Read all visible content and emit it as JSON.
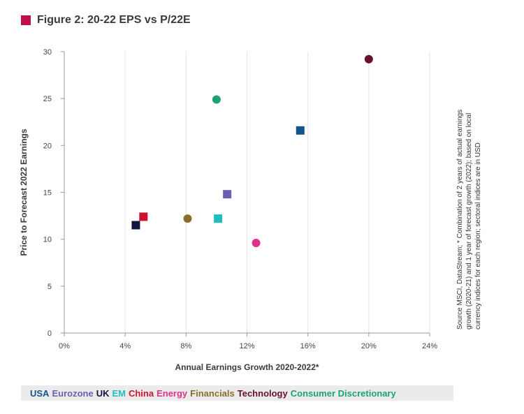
{
  "colors": {
    "title_marker": "#c0104a",
    "axis_text": "#444444",
    "grid": "#e6e6e6",
    "axis_line": "#999999",
    "legend_bg": "#ebebeb"
  },
  "chart_data": {
    "type": "scatter",
    "title": "Figure 2: 20-22 EPS vs P/22E",
    "xlabel": "Annual Earnings Growth 2020-2022*",
    "ylabel": "Price to Forecast 2022 Earnings",
    "xlim": [
      0,
      24
    ],
    "ylim": [
      0,
      30
    ],
    "xticks": [
      0,
      4,
      8,
      12,
      16,
      20,
      24
    ],
    "xtick_labels": [
      "0%",
      "4%",
      "8%",
      "12%",
      "16%",
      "20%",
      "24%"
    ],
    "yticks": [
      0,
      5,
      10,
      15,
      20,
      25,
      30
    ],
    "ytick_labels": [
      "0",
      "5",
      "10",
      "15",
      "20",
      "25",
      "30"
    ],
    "grid": "vertical",
    "legend_position": "bottom",
    "source_note": "Source MSCI, DataStream; * Combination of 2 years of actual earnings growth (2020-21) and 1 year of forecast growth (2022); based on local currency indices for each region; sectoral indices are in USD",
    "series": [
      {
        "name": "USA",
        "x": 15.5,
        "y": 21.6,
        "color": "#12558a",
        "marker": "square"
      },
      {
        "name": "Eurozone",
        "x": 10.7,
        "y": 14.8,
        "color": "#6c5fb0",
        "marker": "square"
      },
      {
        "name": "UK",
        "x": 4.7,
        "y": 11.5,
        "color": "#111540",
        "marker": "square"
      },
      {
        "name": "EM",
        "x": 10.1,
        "y": 12.2,
        "color": "#22bcc4",
        "marker": "square"
      },
      {
        "name": "China",
        "x": 5.2,
        "y": 12.4,
        "color": "#c8152d",
        "marker": "square"
      },
      {
        "name": "Energy",
        "x": 12.6,
        "y": 9.6,
        "color": "#e0308a",
        "marker": "circle"
      },
      {
        "name": "Financials",
        "x": 8.1,
        "y": 12.2,
        "color": "#8a6f2b",
        "marker": "circle"
      },
      {
        "name": "Technology",
        "x": 20.0,
        "y": 29.2,
        "color": "#6a0f2c",
        "marker": "circle"
      },
      {
        "name": "Consumer Discretionary",
        "x": 10.0,
        "y": 24.9,
        "color": "#1aa56e",
        "marker": "circle"
      }
    ]
  }
}
